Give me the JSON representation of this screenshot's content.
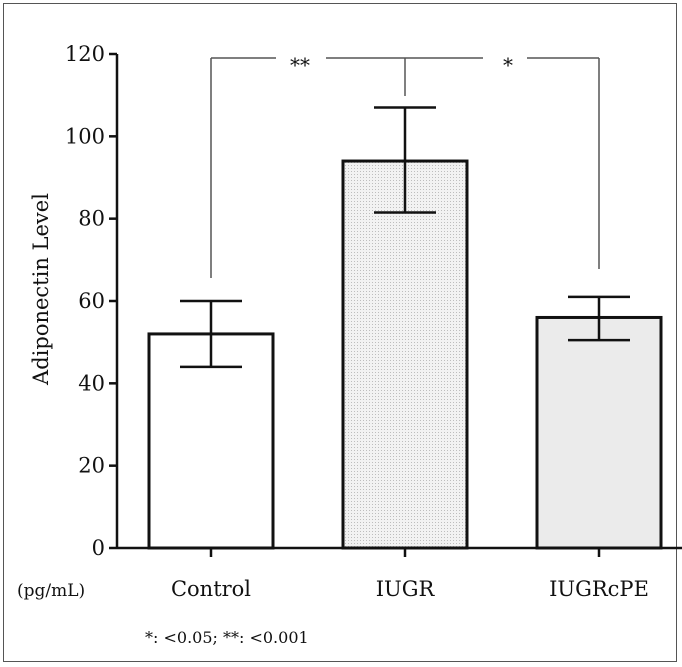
{
  "chart_data": {
    "type": "bar",
    "ylabel": "Adiponectin Level",
    "x_unit_label": "(pg/mL)",
    "categories": [
      "Control",
      "IUGR",
      "IUGRcPE"
    ],
    "values": [
      52,
      94,
      56
    ],
    "error_low": [
      44,
      81.5,
      50.5
    ],
    "error_high": [
      60,
      107,
      61
    ],
    "bar_fills": [
      "#ffffff",
      "#e6e6e6",
      "#eeeeee"
    ],
    "ylim": [
      0,
      120
    ],
    "yticks": [
      0,
      20,
      40,
      60,
      80,
      100,
      120
    ],
    "significance": [
      {
        "from": 0,
        "to": 1,
        "label": "**"
      },
      {
        "from": 1,
        "to": 2,
        "label": "*"
      }
    ],
    "footnote": "*: <0.05; **: <0.001"
  }
}
